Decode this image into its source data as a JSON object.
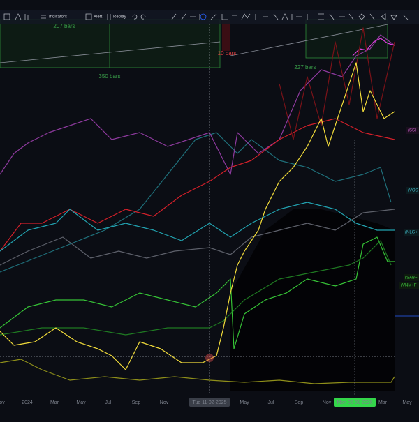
{
  "toolbar": {
    "items": [
      "Indicators",
      "Alert",
      "Replay"
    ]
  },
  "annotations": [
    "207 bars",
    "350 bars",
    "10 bars",
    "227 bars"
  ],
  "series_labels": [
    "(SSI",
    "(VOS",
    "(NLG+",
    "(SAB+",
    "(VNM+F"
  ],
  "x_axis": {
    "labels": [
      "ov",
      "2024",
      "Mar",
      "May",
      "Jul",
      "Sep",
      "Nov",
      "May",
      "Jul",
      "Sep",
      "Nov",
      "Mar",
      "May"
    ],
    "crosshair_date": "Tue 11-02-2025",
    "highlight_date": "Mon 05-01-2026"
  }
}
